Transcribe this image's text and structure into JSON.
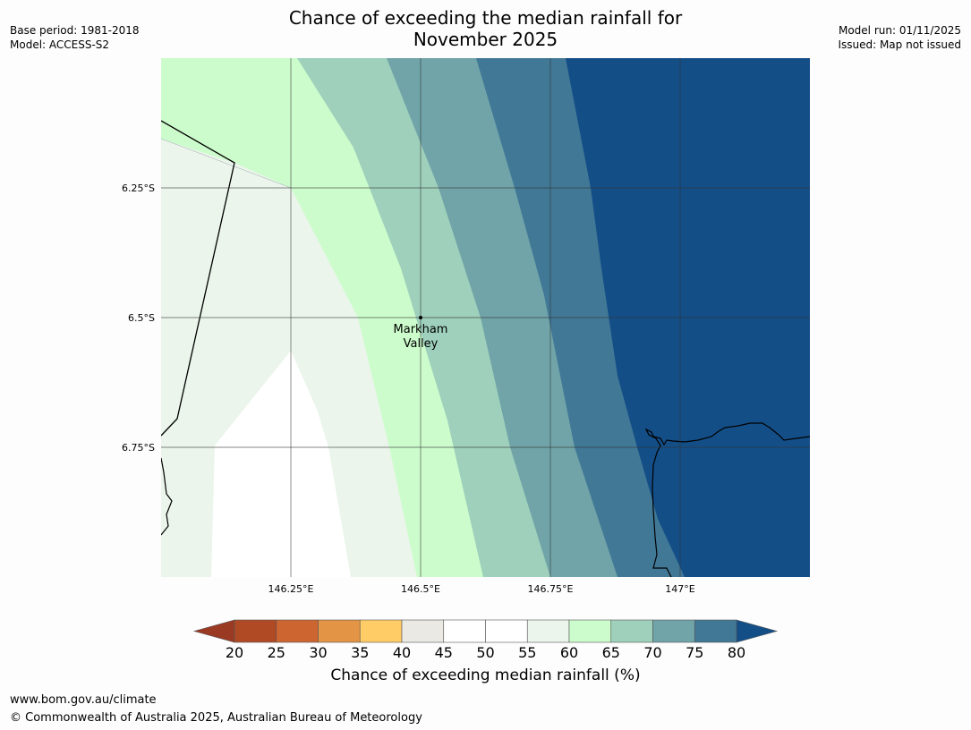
{
  "title": {
    "line1": "Chance of exceeding the median rainfall for",
    "line2": "November 2025"
  },
  "meta_left": {
    "base_period": "Base period: 1981-2018",
    "model": "Model: ACCESS-S2"
  },
  "meta_right": {
    "model_run": "Model run: 01/11/2025",
    "issued": "Issued: Map not issued"
  },
  "map": {
    "lat_ticks": [
      "6.25°S",
      "6.5°S",
      "6.75°S"
    ],
    "lon_ticks": [
      "146.25°E",
      "146.5°E",
      "146.75°E",
      "147°E"
    ],
    "place": {
      "name_line1": "Markham",
      "name_line2": "Valley"
    },
    "band_colors": {
      "c45_50": "#ffffff",
      "c55_60": "#ebf5eb",
      "c60_65": "#ccfccc",
      "c65_70": "#9ed0bb",
      "c70_75": "#70a4a8",
      "c75_80": "#417896",
      "c80_plus": "#144e87"
    }
  },
  "colorbar": {
    "label": "Chance of exceeding median rainfall (%)",
    "ticks": [
      "20",
      "25",
      "30",
      "35",
      "40",
      "45",
      "50",
      "55",
      "60",
      "65",
      "70",
      "75",
      "80"
    ],
    "under_color": "#9b3a22",
    "over_color": "#144e87",
    "colors": [
      "#b04a25",
      "#cd6531",
      "#e39444",
      "#ffcc66",
      "#ebe9e4",
      "#ffffff",
      "#ffffff",
      "#ebf5eb",
      "#ccfccc",
      "#9ed0bb",
      "#70a4a8",
      "#417896"
    ]
  },
  "footer": {
    "url": "www.bom.gov.au/climate",
    "copyright": "© Commonwealth of Australia 2025, Australian Bureau of Meteorology"
  }
}
